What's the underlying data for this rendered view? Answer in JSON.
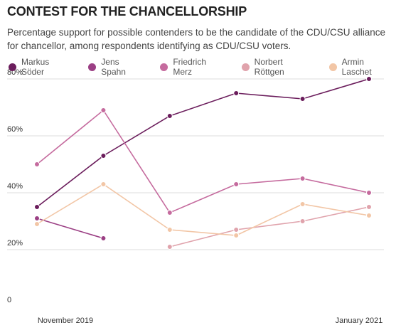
{
  "chart_data": {
    "type": "line",
    "title": "CONTEST FOR THE CHANCELLORSHIP",
    "subtitle": "Percentage support for possible contenders to be the candidate of the CDU/CSU alliance for chancellor, among respondents identifying as CDU/CSU voters.",
    "categories": [
      "November 2019",
      null,
      null,
      null,
      null,
      "January 2021"
    ],
    "series": [
      {
        "name": "Markus Söder",
        "color": "#6b1d5c",
        "values": [
          35,
          53,
          67,
          75,
          73,
          80
        ]
      },
      {
        "name": "Jens Spahn",
        "color": "#9b3f84",
        "values": [
          31,
          24,
          null,
          null,
          null,
          null
        ]
      },
      {
        "name": "Friedrich Merz",
        "color": "#c56b9e",
        "values": [
          50,
          69,
          33,
          43,
          45,
          40
        ]
      },
      {
        "name": "Norbert Röttgen",
        "color": "#e0a3ac",
        "values": [
          null,
          null,
          21,
          27,
          30,
          35
        ]
      },
      {
        "name": "Armin Laschet",
        "color": "#f2c6a6",
        "values": [
          29,
          43,
          27,
          25,
          36,
          32
        ]
      }
    ],
    "ylim": [
      0,
      80
    ],
    "yticks": [
      0,
      {
        "value": 20,
        "label": "20%"
      },
      {
        "value": 40,
        "label": "40%"
      },
      {
        "value": 60,
        "label": "60%"
      },
      {
        "value": 80,
        "label": "80%"
      }
    ],
    "grid": true
  }
}
